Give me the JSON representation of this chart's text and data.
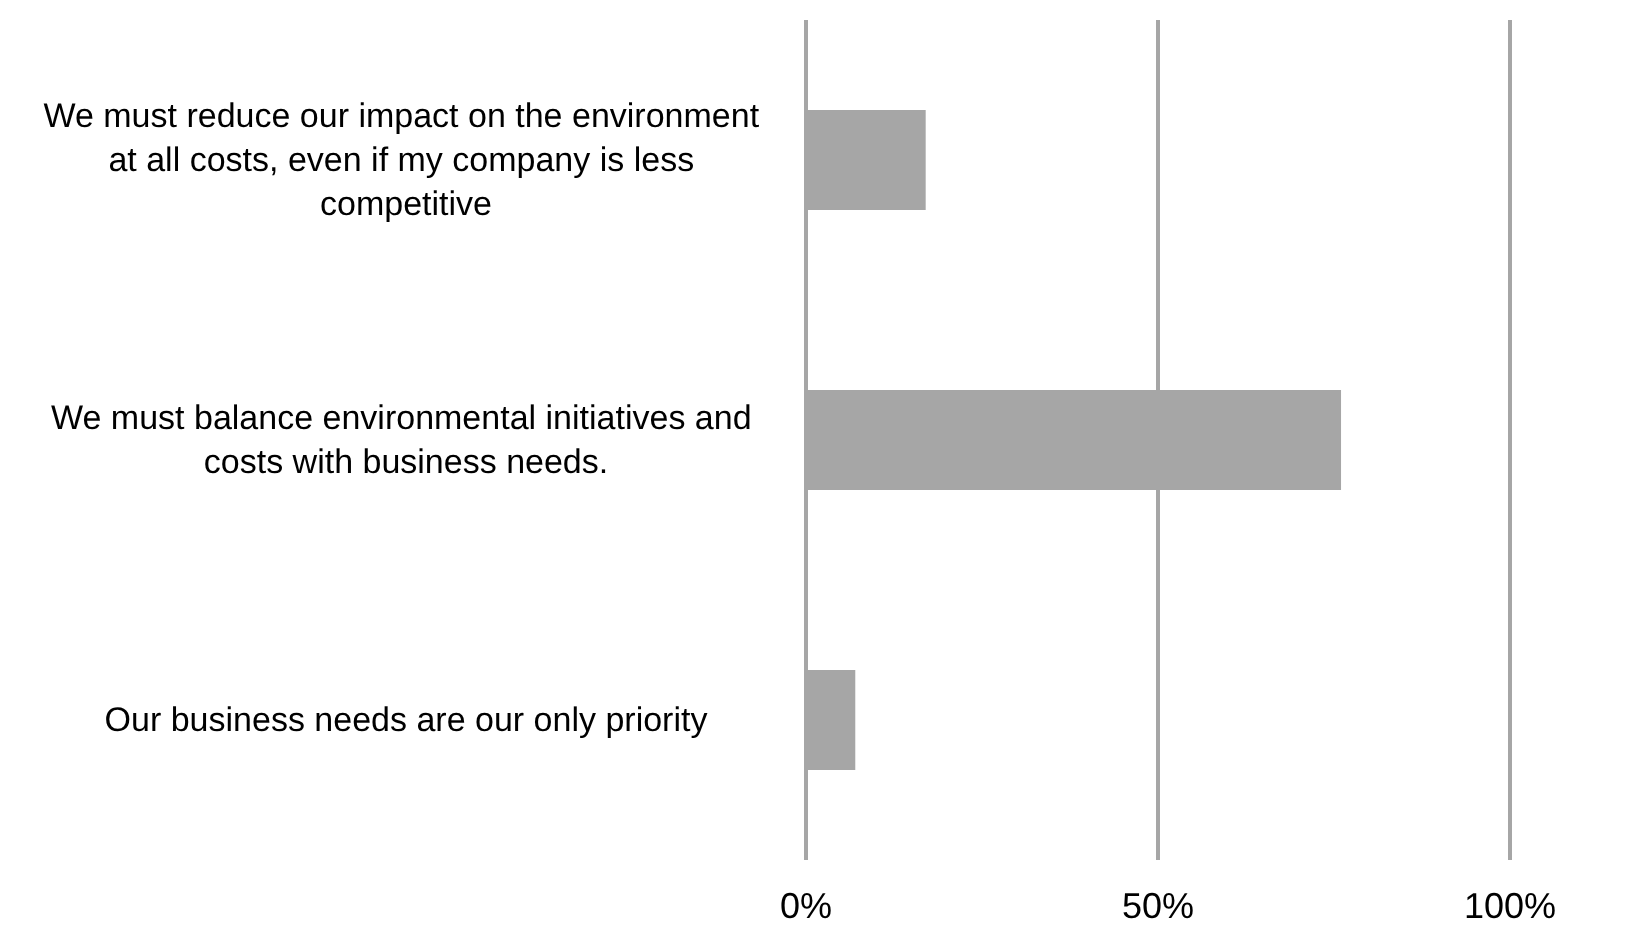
{
  "chart_data": {
    "type": "bar",
    "orientation": "horizontal",
    "categories": [
      "We must reduce our impact on the environment at all costs, even if my company is less competitive",
      "We must balance environmental initiatives and costs with business needs.",
      "Our business needs are our only priority"
    ],
    "values": [
      17,
      76,
      7
    ],
    "color": "#a6a6a6",
    "xlim": [
      0,
      100
    ],
    "xticks": [
      {
        "value": 0,
        "label": "0%"
      },
      {
        "value": 50,
        "label": "50%"
      },
      {
        "value": 100,
        "label": "100%"
      }
    ],
    "grid": "x"
  }
}
